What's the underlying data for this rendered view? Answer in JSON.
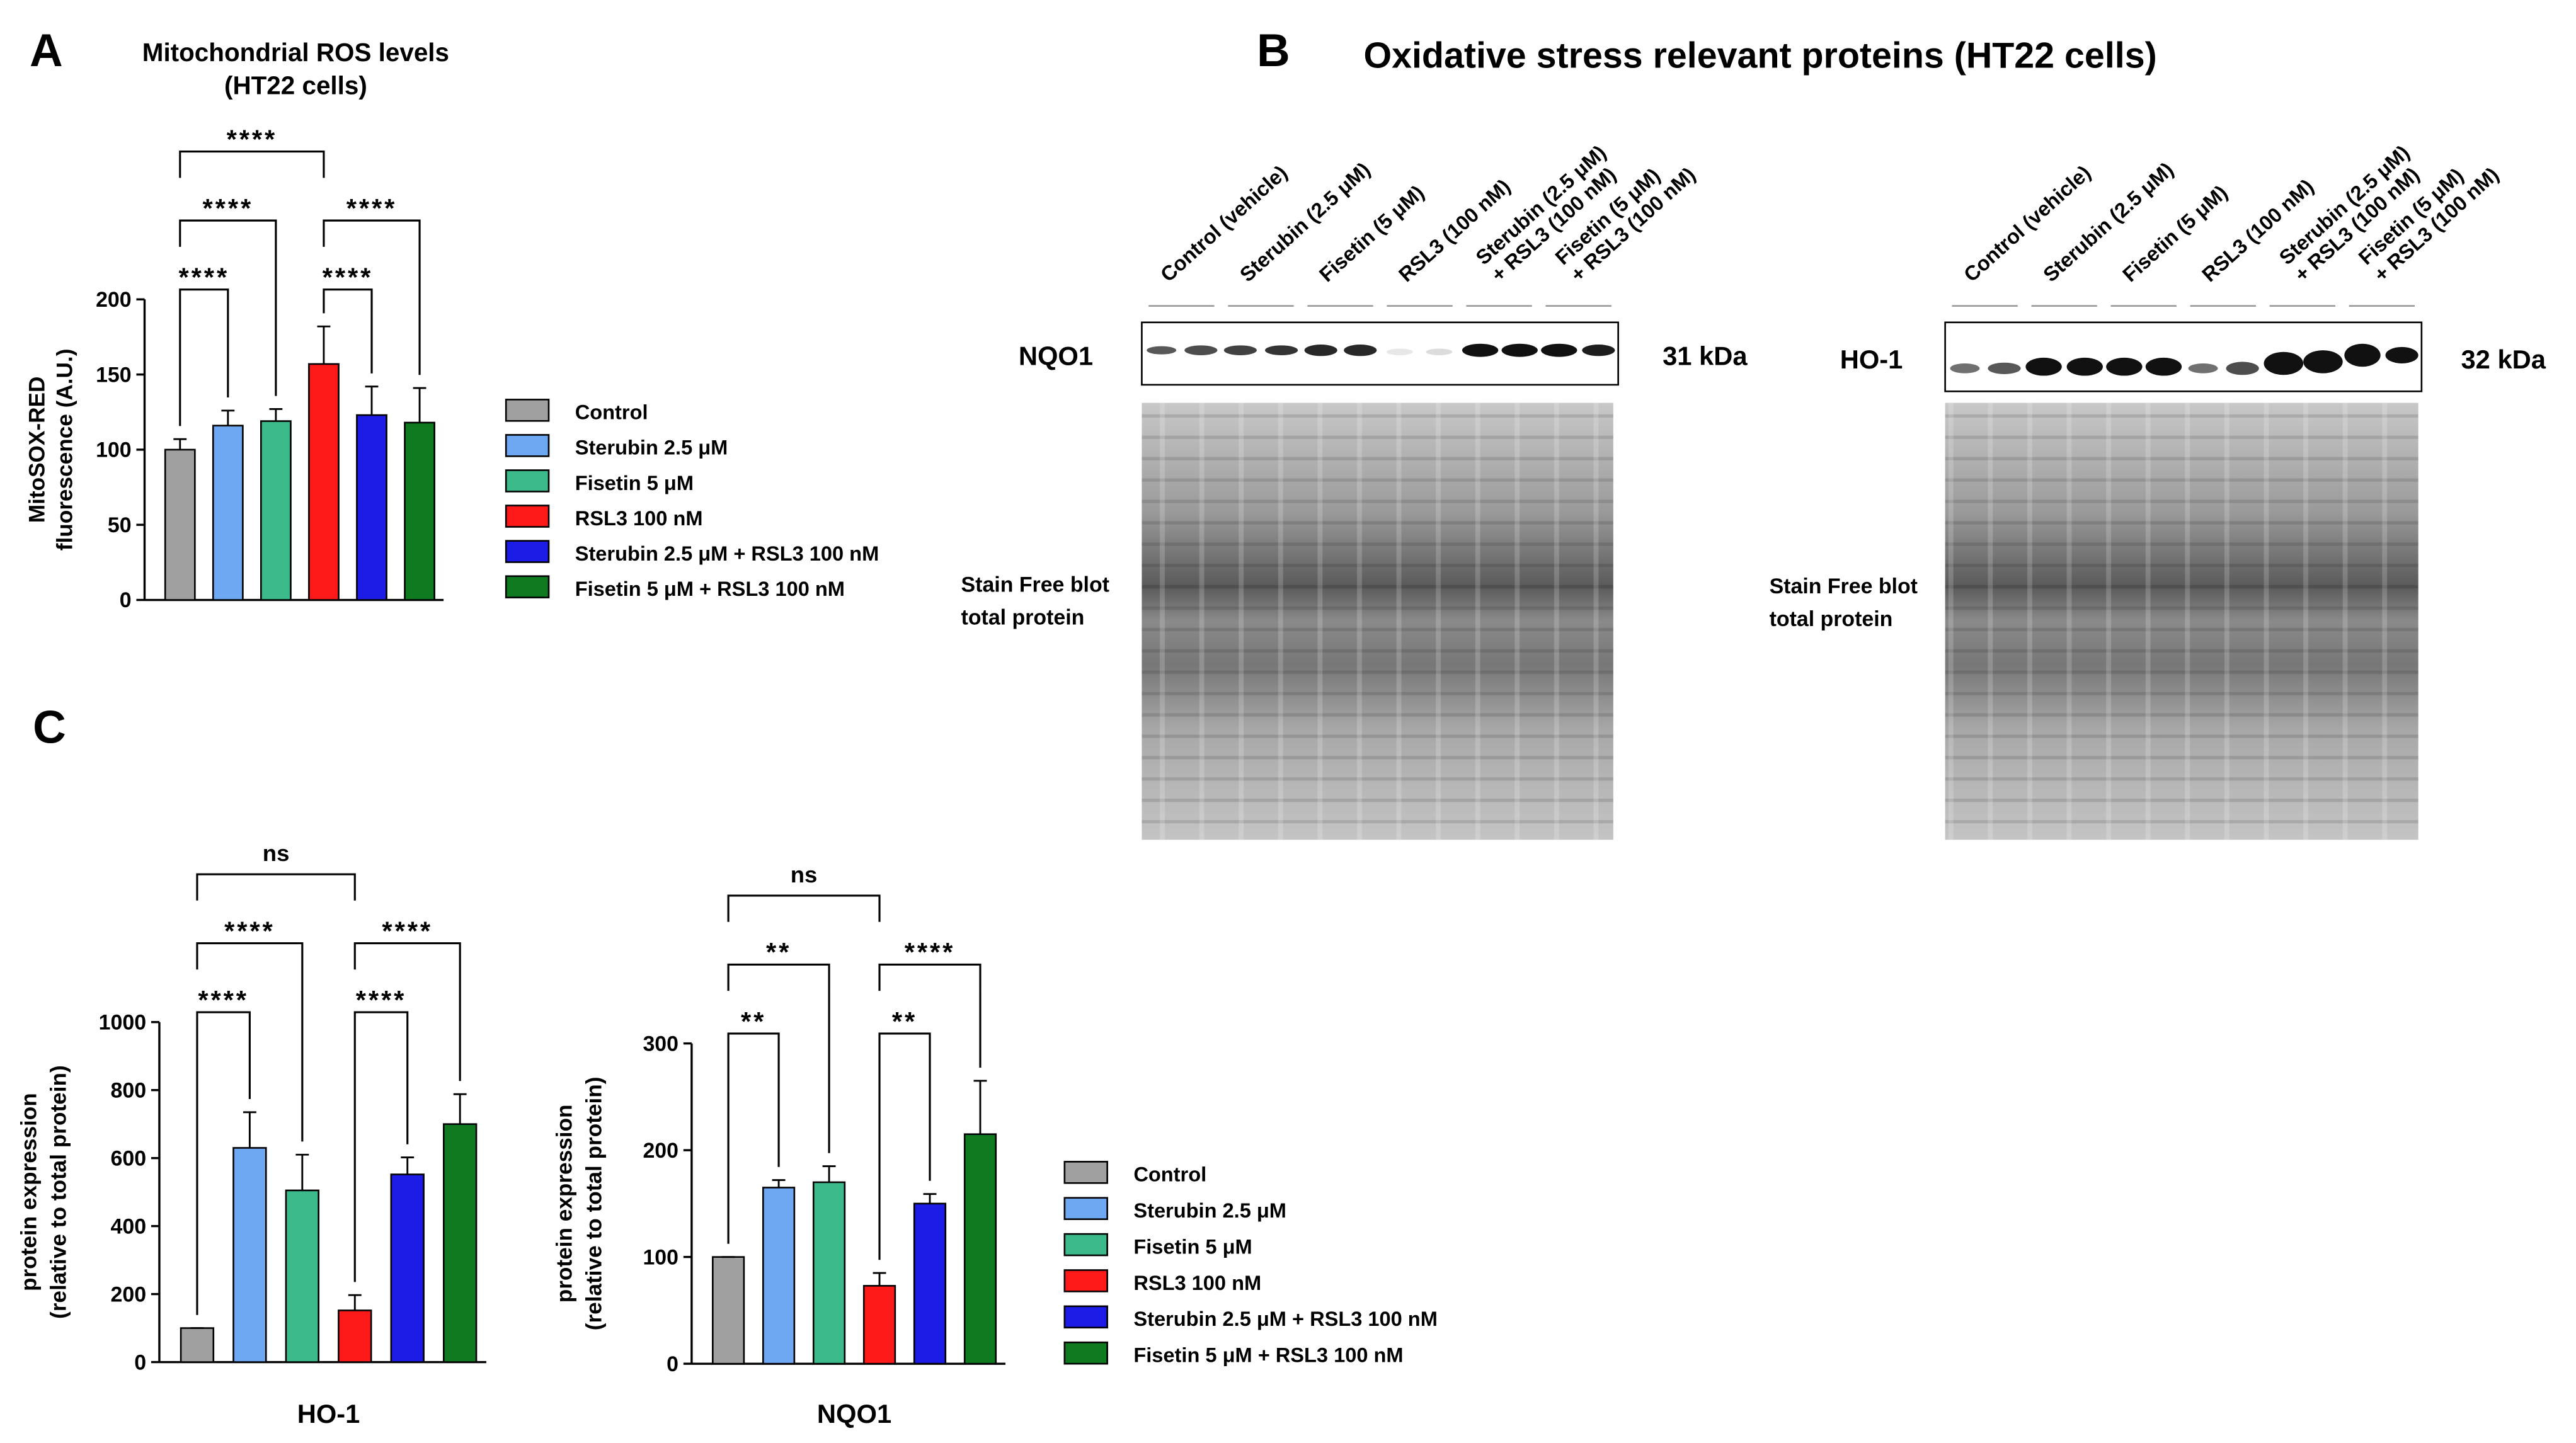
{
  "panel_labels": [
    "A",
    "B",
    "C"
  ],
  "chart_data": [
    {
      "type": "bar",
      "title": [
        "Mitochondrial ROS levels",
        "(HT22 cells)"
      ],
      "ylabel": [
        "MitoSOX-RED",
        "fluorescence (A.U.)"
      ],
      "categories": [
        "Control",
        "Sterubin 2.5 μM",
        "Fisetin 5 μM",
        "RSL3 100 nM",
        "Sterubin 2.5 μM + RSL3 100 nM",
        "Fisetin 5 μM + RSL3 100 nM"
      ],
      "values": [
        100,
        116,
        119,
        157,
        123,
        118
      ],
      "errors": [
        7,
        10,
        8,
        25,
        19,
        23
      ],
      "colors": [
        "#a0a0a0",
        "#6ea8f2",
        "#3dba8c",
        "#ff1a1a",
        "#1c1ce6",
        "#0f7a1f"
      ],
      "ylim": [
        0,
        200
      ],
      "yticks": [
        0,
        50,
        100,
        150,
        200
      ],
      "comparisons": [
        {
          "pair": [
            0,
            1
          ],
          "label": "****"
        },
        {
          "pair": [
            3,
            4
          ],
          "label": "****"
        },
        {
          "pair": [
            0,
            2
          ],
          "label": "****"
        },
        {
          "pair": [
            3,
            5
          ],
          "label": "****"
        },
        {
          "pair": [
            0,
            3
          ],
          "label": "****"
        }
      ],
      "legend": "right"
    },
    {
      "type": "bar",
      "xlabel": "HO-1",
      "ylabel": [
        "protein expression",
        "(relative to total protein)"
      ],
      "categories": [
        "Control",
        "Sterubin 2.5 μM",
        "Fisetin 5 μM",
        "RSL3 100 nM",
        "Sterubin 2.5 μM + RSL3 100 nM",
        "Fisetin 5 μM + RSL3 100 nM"
      ],
      "values": [
        100,
        630,
        505,
        152,
        552,
        700
      ],
      "errors": [
        0,
        105,
        105,
        45,
        50,
        88
      ],
      "colors": [
        "#a0a0a0",
        "#6ea8f2",
        "#3dba8c",
        "#ff1a1a",
        "#1c1ce6",
        "#0f7a1f"
      ],
      "ylim": [
        0,
        1000
      ],
      "yticks": [
        0,
        200,
        400,
        600,
        800,
        1000
      ],
      "comparisons": [
        {
          "pair": [
            0,
            1
          ],
          "label": "****"
        },
        {
          "pair": [
            3,
            4
          ],
          "label": "****"
        },
        {
          "pair": [
            0,
            2
          ],
          "label": "****"
        },
        {
          "pair": [
            3,
            5
          ],
          "label": "****"
        },
        {
          "pair": [
            0,
            3
          ],
          "label": "ns"
        }
      ]
    },
    {
      "type": "bar",
      "xlabel": "NQO1",
      "ylabel": [
        "protein expression",
        "(relative to total protein)"
      ],
      "categories": [
        "Control",
        "Sterubin 2.5 μM",
        "Fisetin 5 μM",
        "RSL3 100 nM",
        "Sterubin 2.5 μM + RSL3 100 nM",
        "Fisetin 5 μM + RSL3 100 nM"
      ],
      "values": [
        100,
        165,
        170,
        73,
        150,
        215
      ],
      "errors": [
        0,
        7,
        15,
        12,
        9,
        50
      ],
      "colors": [
        "#a0a0a0",
        "#6ea8f2",
        "#3dba8c",
        "#ff1a1a",
        "#1c1ce6",
        "#0f7a1f"
      ],
      "ylim": [
        0,
        300
      ],
      "yticks": [
        0,
        100,
        200,
        300
      ],
      "comparisons": [
        {
          "pair": [
            0,
            1
          ],
          "label": "**"
        },
        {
          "pair": [
            3,
            4
          ],
          "label": "**"
        },
        {
          "pair": [
            0,
            2
          ],
          "label": "**"
        },
        {
          "pair": [
            3,
            5
          ],
          "label": "****"
        },
        {
          "pair": [
            0,
            3
          ],
          "label": "ns"
        }
      ],
      "legend": "right"
    }
  ],
  "blot_figure": {
    "title": "Oxidative stress relevant proteins (HT22 cells)",
    "blots": [
      {
        "protein": "NQO1",
        "size": "31 kDa",
        "stain": [
          "Stain Free blot",
          "total protein"
        ],
        "lanes": [
          [
            "Control (vehicle)"
          ],
          [
            "Sterubin (2.5 μM)"
          ],
          [
            "Fisetin (5 μM)"
          ],
          [
            "RSL3 (100 nM)"
          ],
          [
            "Sterubin (2.5 μM)",
            "+ RSL3 (100 nM)"
          ],
          [
            "Fisetin (5 μM)",
            "+ RSL3 (100 nM)"
          ]
        ]
      },
      {
        "protein": "HO-1",
        "size": "32 kDa",
        "stain": [
          "Stain Free blot",
          "total protein"
        ],
        "lanes": [
          [
            "Control (vehicle)"
          ],
          [
            "Sterubin (2.5 μM)"
          ],
          [
            "Fisetin (5 μM)"
          ],
          [
            "RSL3 (100 nM)"
          ],
          [
            "Sterubin (2.5 μM)",
            "+ RSL3 (100 nM)"
          ],
          [
            "Fisetin (5 μM)",
            "+ RSL3 (100 nM)"
          ]
        ]
      }
    ]
  }
}
